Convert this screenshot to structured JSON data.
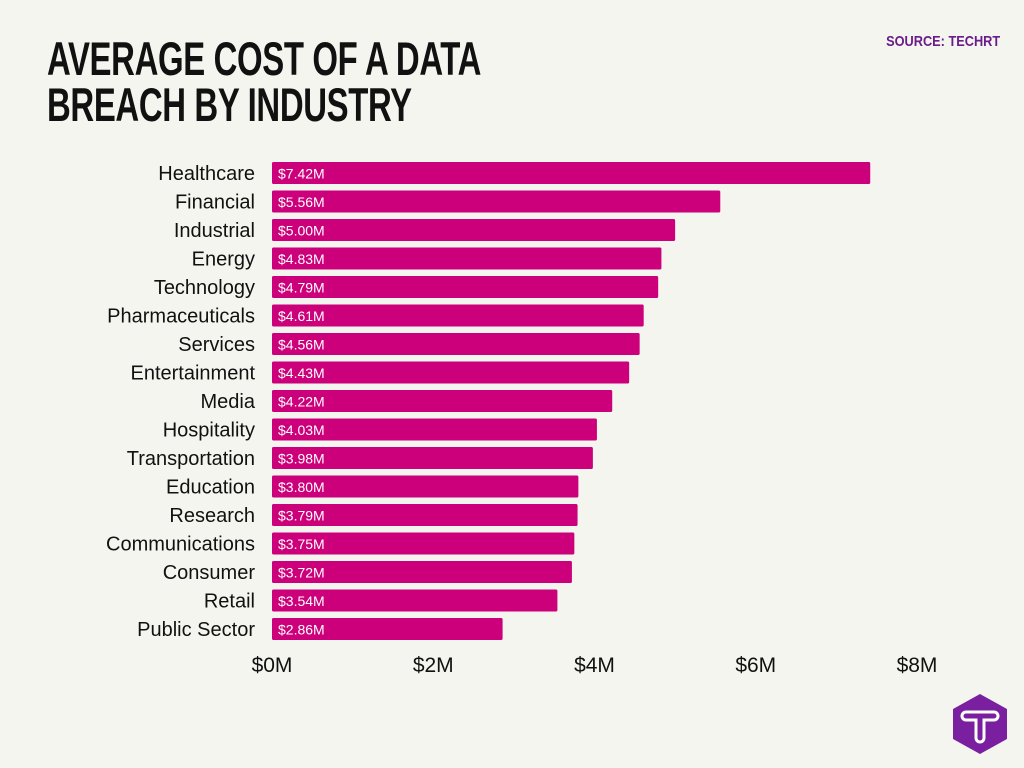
{
  "source": "SOURCE: TECHRT",
  "colors": {
    "bar": "#cc007a",
    "bar_label": "#ffffff",
    "background": "#f5f5f0",
    "accent": "#7a1fa0"
  },
  "logo_icon": "techrt-hexagon-t-logo",
  "chart_data": {
    "type": "bar",
    "orientation": "horizontal",
    "title": "AVERAGE COST OF A DATA BREACH BY INDUSTRY",
    "categories": [
      "Healthcare",
      "Financial",
      "Industrial",
      "Energy",
      "Technology",
      "Pharmaceuticals",
      "Services",
      "Entertainment",
      "Media",
      "Hospitality",
      "Transportation",
      "Education",
      "Research",
      "Communications",
      "Consumer",
      "Retail",
      "Public Sector"
    ],
    "values": [
      7.42,
      5.56,
      5.0,
      4.83,
      4.79,
      4.61,
      4.56,
      4.43,
      4.22,
      4.03,
      3.98,
      3.8,
      3.79,
      3.75,
      3.72,
      3.54,
      2.86
    ],
    "data_labels": [
      "$7.42M",
      "$5.56M",
      "$5.00M",
      "$4.83M",
      "$4.79M",
      "$4.61M",
      "$4.56M",
      "$4.43M",
      "$4.22M",
      "$4.03M",
      "$3.98M",
      "$3.80M",
      "$3.79M",
      "$3.75M",
      "$3.72M",
      "$3.54M",
      "$2.86M"
    ],
    "xlim": [
      0,
      8
    ],
    "xticks": [
      0,
      2,
      4,
      6,
      8
    ],
    "xtick_labels": [
      "$0M",
      "$2M",
      "$4M",
      "$6M",
      "$8M"
    ],
    "xlabel": "",
    "ylabel": "",
    "grid": false,
    "legend": "none"
  }
}
